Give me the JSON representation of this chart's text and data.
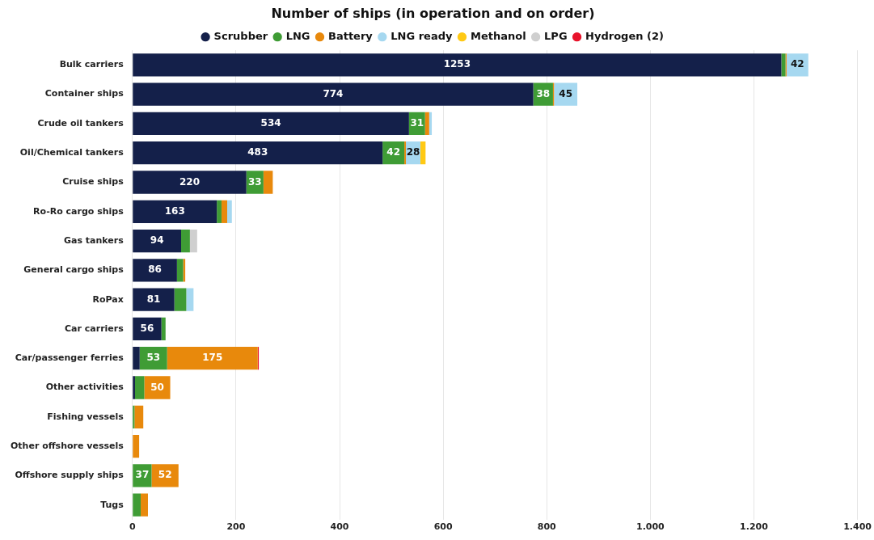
{
  "chart_data": {
    "type": "bar",
    "orientation": "horizontal",
    "stacked": true,
    "title": "Number of ships (in operation and on order)",
    "legend": "top",
    "grid": "x",
    "categories": [
      "Bulk carriers",
      "Container ships",
      "Crude oil tankers",
      "Oil/Chemical tankers",
      "Cruise ships",
      "Ro-Ro cargo ships",
      "Gas tankers",
      "General cargo ships",
      "RoPax",
      "Car carriers",
      "Car/passenger ferries",
      "Other activities",
      "Fishing vessels",
      "Other offshore vessels",
      "Offshore supply ships",
      "Tugs"
    ],
    "xlim": [
      0,
      1400
    ],
    "xticks": [
      0,
      200,
      400,
      600,
      800,
      {
        "value": 1000,
        "label": "1.000"
      },
      {
        "value": 1200,
        "label": "1.200"
      },
      {
        "value": 1400,
        "label": "1.400"
      }
    ],
    "series": [
      {
        "name": "Scrubber",
        "color": "#14204a",
        "values": [
          1253,
          774,
          534,
          483,
          220,
          163,
          94,
          86,
          81,
          56,
          14,
          5,
          null,
          null,
          null,
          null
        ],
        "value_labels": [
          "1253",
          "774",
          "534",
          "483",
          "220",
          "163",
          "94",
          "86",
          "81",
          "56",
          null,
          null,
          null,
          null,
          null,
          null
        ]
      },
      {
        "name": "LNG",
        "color": "#3f9c35",
        "values": [
          8,
          38,
          31,
          42,
          33,
          9,
          17,
          12,
          23,
          8,
          53,
          18,
          4,
          null,
          37,
          16
        ],
        "value_labels": [
          null,
          "38",
          "31",
          "42",
          "33",
          null,
          null,
          null,
          null,
          null,
          "53",
          null,
          null,
          null,
          "37",
          null
        ]
      },
      {
        "name": "Battery",
        "color": "#e8890c",
        "values": [
          2,
          2,
          8,
          3,
          18,
          11,
          null,
          4,
          null,
          null,
          175,
          50,
          17,
          13,
          52,
          14
        ],
        "value_labels": [
          null,
          null,
          null,
          null,
          null,
          null,
          null,
          null,
          null,
          null,
          "175",
          "50",
          null,
          null,
          "52",
          null
        ]
      },
      {
        "name": "LNG ready",
        "color": "#a6d8f0",
        "values": [
          42,
          45,
          5,
          28,
          null,
          9,
          null,
          null,
          14,
          null,
          null,
          null,
          null,
          null,
          null,
          null
        ],
        "value_labels": [
          "42",
          "45",
          null,
          "28",
          null,
          null,
          null,
          null,
          null,
          null,
          null,
          null,
          null,
          null,
          null,
          null
        ]
      },
      {
        "name": "Methanol",
        "color": "#ffc914",
        "values": [
          null,
          null,
          null,
          10,
          null,
          null,
          null,
          null,
          null,
          null,
          null,
          null,
          null,
          null,
          null,
          null
        ]
      },
      {
        "name": "LPG",
        "color": "#cfcfcf",
        "values": [
          null,
          null,
          null,
          null,
          null,
          null,
          14,
          null,
          null,
          null,
          null,
          null,
          null,
          null,
          null,
          null
        ]
      },
      {
        "name": "Hydrogen (2)",
        "color": "#e8132b",
        "values": [
          null,
          null,
          null,
          null,
          null,
          null,
          null,
          null,
          null,
          null,
          2,
          null,
          null,
          null,
          null,
          null
        ]
      }
    ]
  }
}
